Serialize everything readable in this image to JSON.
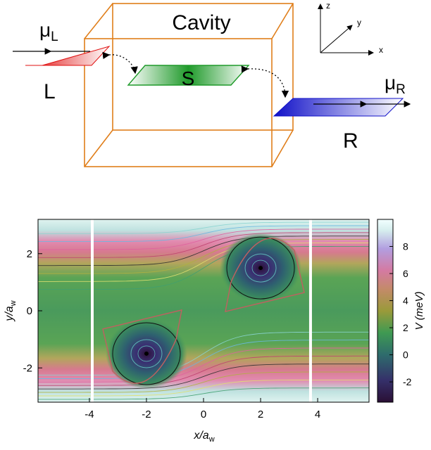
{
  "schematic": {
    "cavity_label": "Cavity",
    "system_label": "S",
    "left_lead_label": "L",
    "right_lead_label": "R",
    "mu_left": {
      "base": "μ",
      "sub": "L"
    },
    "mu_right": {
      "base": "μ",
      "sub": "R"
    },
    "axes": {
      "x": "x",
      "y": "y",
      "z": "z"
    },
    "colors": {
      "cavity": "#e07e1a",
      "system": "#1f9a2a",
      "left_lead": "#e01010",
      "right_lead": "#1010c8"
    }
  },
  "plot": {
    "xlabel": {
      "main": "x/a",
      "sub": "w"
    },
    "ylabel": {
      "main": "y/a",
      "sub": "w"
    },
    "colorbar_label": "V (meV)",
    "xticks": [
      "-4",
      "-2",
      "0",
      "2",
      "4"
    ],
    "yticks": [
      "-2",
      "0",
      "2"
    ],
    "cbticks": [
      "-2",
      "0",
      "2",
      "4",
      "6",
      "8"
    ]
  },
  "chart_data": {
    "type": "heatmap",
    "xlabel": "x/a_w",
    "ylabel": "y/a_w",
    "colorbar": "V (meV)",
    "xlim": [
      -5.8,
      5.8
    ],
    "ylim": [
      -3.2,
      3.2
    ],
    "clim": [
      -3.5,
      10
    ],
    "dots": [
      {
        "x": -2.0,
        "y": -1.5
      },
      {
        "x": 2.0,
        "y": 1.5
      }
    ],
    "lead_boundaries_x": [
      -3.9,
      3.75
    ]
  }
}
